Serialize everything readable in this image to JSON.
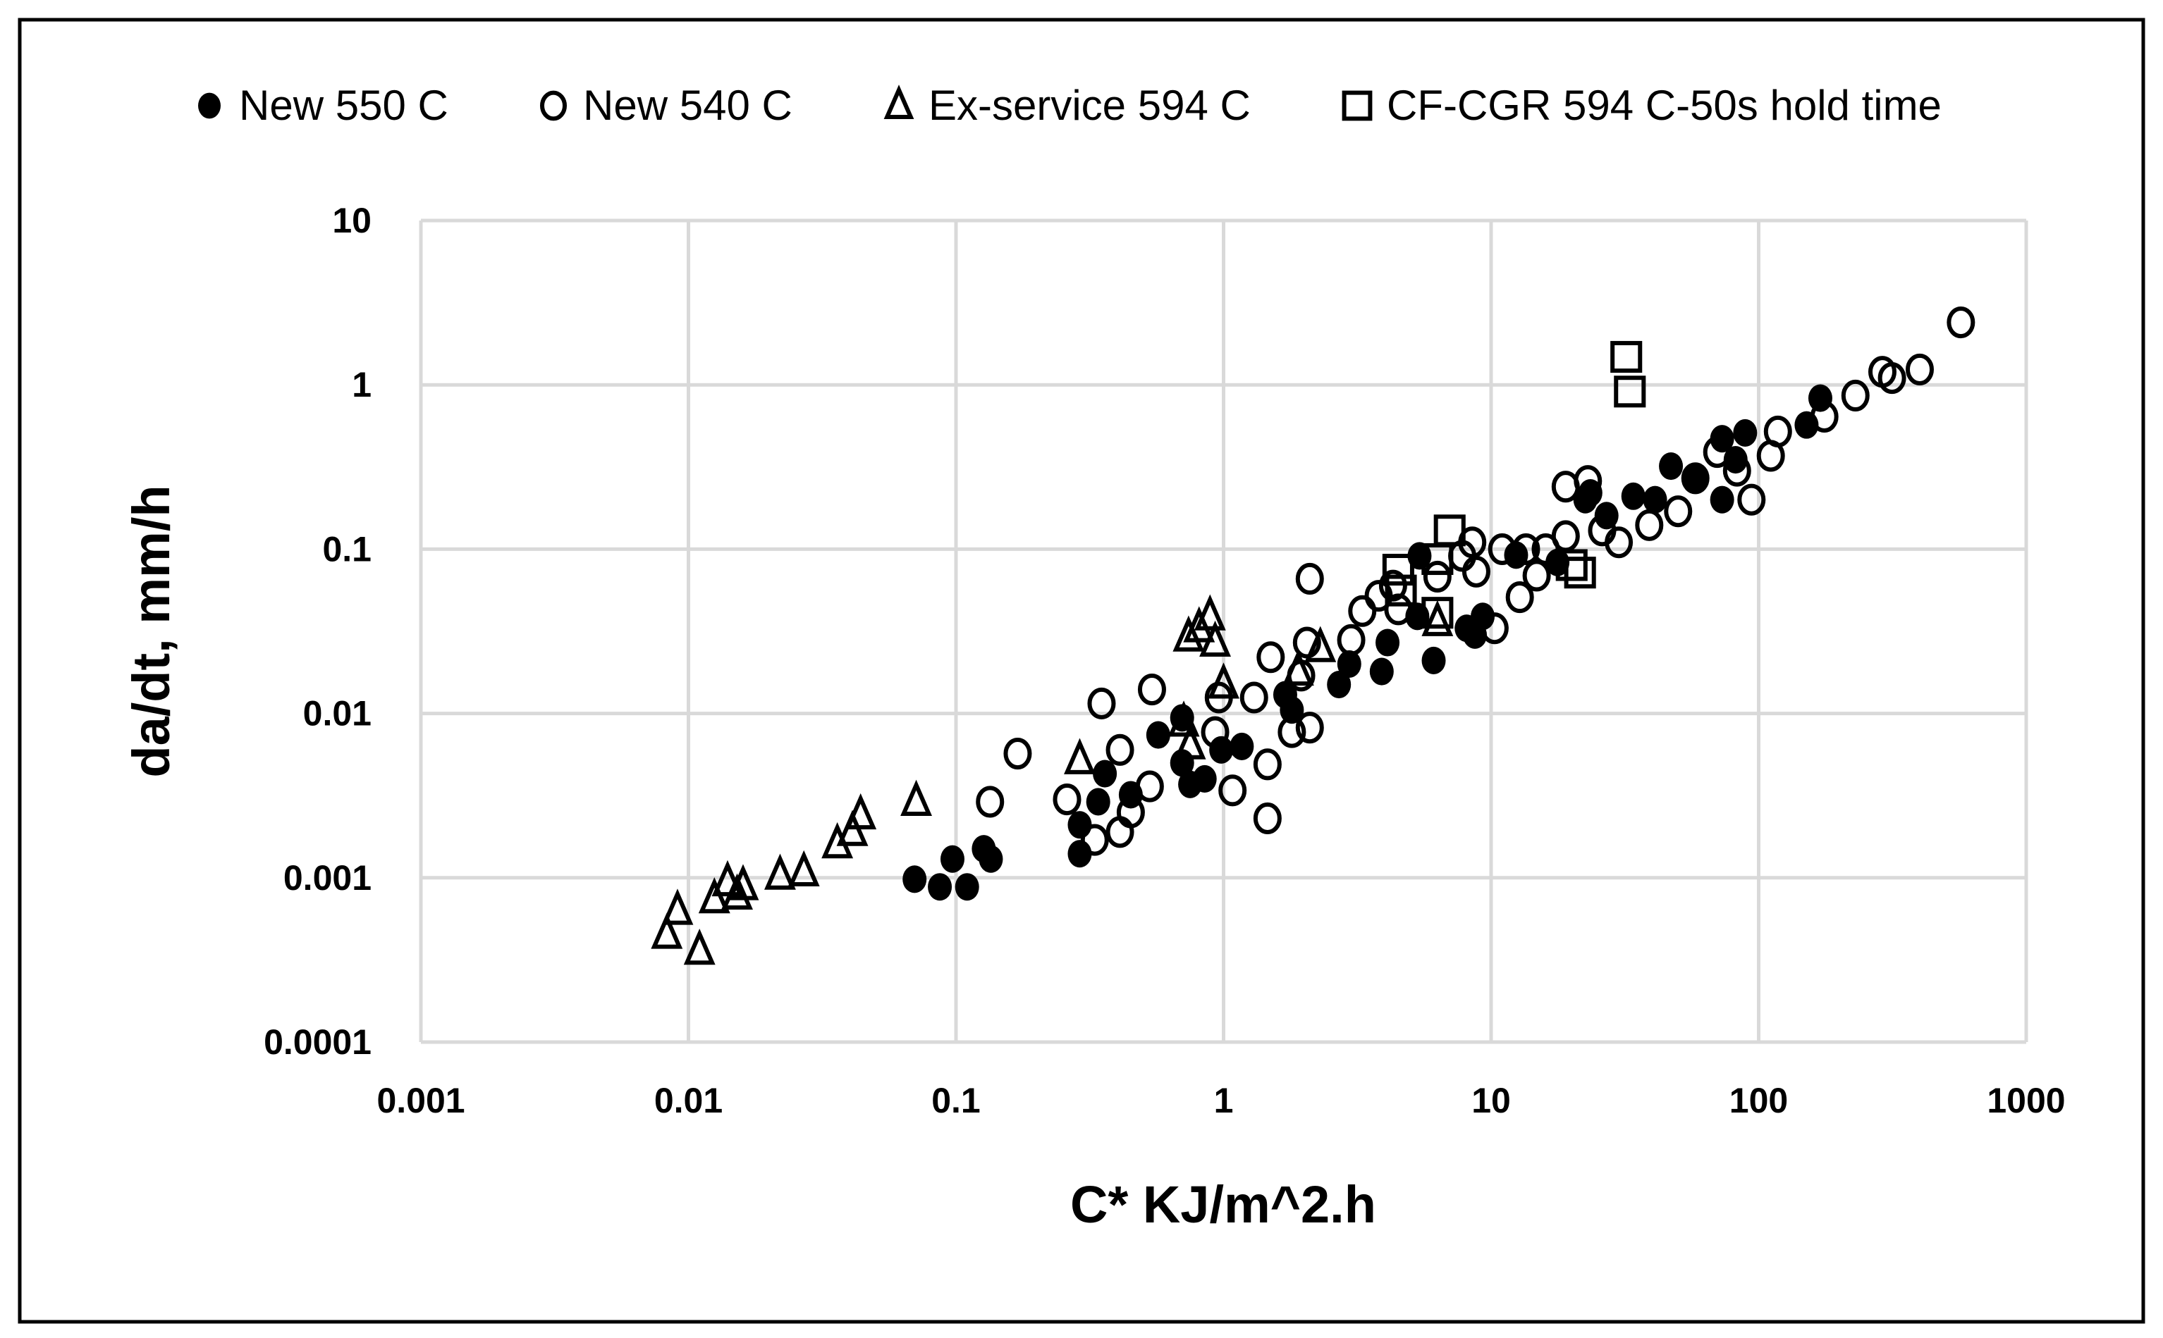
{
  "chart_data": {
    "type": "scatter",
    "title": "",
    "xlabel": "C* KJ/m^2.h",
    "ylabel": "da/dt, mm/h",
    "xscale": "log",
    "yscale": "log",
    "xlim": [
      0.001,
      1000
    ],
    "ylim": [
      0.0001,
      10
    ],
    "x_ticks": [
      "0.001",
      "0.01",
      "0.1",
      "1",
      "10",
      "100",
      "1000"
    ],
    "y_ticks": [
      "0.0001",
      "0.001",
      "0.01",
      "0.1",
      "1",
      "10"
    ],
    "grid": true,
    "legend_position": "top",
    "series": [
      {
        "name": "New 550 C",
        "marker": "filled-circle",
        "color": "#000000",
        "points": [
          [
            0.07,
            0.00098
          ],
          [
            0.087,
            0.00088
          ],
          [
            0.097,
            0.0013
          ],
          [
            0.11,
            0.00088
          ],
          [
            0.127,
            0.0015
          ],
          [
            0.135,
            0.0013
          ],
          [
            0.29,
            0.0014
          ],
          [
            0.29,
            0.0021
          ],
          [
            0.34,
            0.0029
          ],
          [
            0.36,
            0.0043
          ],
          [
            0.45,
            0.0032
          ],
          [
            0.57,
            0.0074
          ],
          [
            0.7,
            0.0094
          ],
          [
            0.7,
            0.005
          ],
          [
            0.75,
            0.0037
          ],
          [
            0.85,
            0.004
          ],
          [
            0.98,
            0.006
          ],
          [
            1.17,
            0.0063
          ],
          [
            1.7,
            0.013
          ],
          [
            1.8,
            0.0105
          ],
          [
            2.7,
            0.015
          ],
          [
            2.95,
            0.02
          ],
          [
            3.9,
            0.018
          ],
          [
            4.1,
            0.027
          ],
          [
            5.3,
            0.039
          ],
          [
            5.4,
            0.091
          ],
          [
            6.1,
            0.021
          ],
          [
            8.1,
            0.033
          ],
          [
            8.7,
            0.03
          ],
          [
            9.3,
            0.039
          ],
          [
            12.4,
            0.092
          ],
          [
            17.7,
            0.083
          ],
          [
            22.5,
            0.2
          ],
          [
            23.5,
            0.22
          ],
          [
            27,
            0.16
          ],
          [
            34,
            0.21
          ],
          [
            41,
            0.2
          ],
          [
            47,
            0.32
          ],
          [
            58,
            0.27
          ],
          [
            73,
            0.47
          ],
          [
            73,
            0.2
          ],
          [
            82,
            0.35
          ],
          [
            89,
            0.51
          ],
          [
            151,
            0.57
          ],
          [
            170,
            0.83
          ]
        ]
      },
      {
        "name": "New 540 C",
        "marker": "open-circle",
        "color": "#000000",
        "points": [
          [
            0.134,
            0.0029
          ],
          [
            0.17,
            0.0057
          ],
          [
            0.26,
            0.003
          ],
          [
            0.35,
            0.0115
          ],
          [
            0.33,
            0.0017
          ],
          [
            0.41,
            0.006
          ],
          [
            0.41,
            0.0019
          ],
          [
            0.45,
            0.0025
          ],
          [
            0.54,
            0.014
          ],
          [
            0.53,
            0.0036
          ],
          [
            1.08,
            0.0034
          ],
          [
            0.93,
            0.0077
          ],
          [
            0.96,
            0.0125
          ],
          [
            1.46,
            0.0023
          ],
          [
            1.46,
            0.0049
          ],
          [
            1.5,
            0.022
          ],
          [
            1.3,
            0.0125
          ],
          [
            2.1,
            0.066
          ],
          [
            2.05,
            0.027
          ],
          [
            1.95,
            0.017
          ],
          [
            2.1,
            0.0082
          ],
          [
            1.8,
            0.0077
          ],
          [
            3.0,
            0.028
          ],
          [
            3.3,
            0.042
          ],
          [
            3.8,
            0.052
          ],
          [
            4.3,
            0.06
          ],
          [
            4.5,
            0.043
          ],
          [
            6.3,
            0.068
          ],
          [
            7.8,
            0.091
          ],
          [
            8.5,
            0.11
          ],
          [
            8.8,
            0.073
          ],
          [
            10.3,
            0.033
          ],
          [
            11,
            0.1
          ],
          [
            12.8,
            0.051
          ],
          [
            13.5,
            0.1
          ],
          [
            14.8,
            0.069
          ],
          [
            16,
            0.1
          ],
          [
            19,
            0.24
          ],
          [
            19,
            0.12
          ],
          [
            23,
            0.26
          ],
          [
            26,
            0.13
          ],
          [
            30,
            0.11
          ],
          [
            39,
            0.14
          ],
          [
            50,
            0.17
          ],
          [
            58,
            0.27
          ],
          [
            70,
            0.39
          ],
          [
            83,
            0.3
          ],
          [
            94,
            0.2
          ],
          [
            111,
            0.37
          ],
          [
            118,
            0.52
          ],
          [
            176,
            0.64
          ],
          [
            230,
            0.86
          ],
          [
            290,
            1.2
          ],
          [
            315,
            1.1
          ],
          [
            400,
            1.24
          ],
          [
            570,
            2.4
          ]
        ]
      },
      {
        "name": "Ex-service 594 C",
        "marker": "open-triangle",
        "color": "#000000",
        "points": [
          [
            0.0083,
            0.00045
          ],
          [
            0.0091,
            0.00063
          ],
          [
            0.011,
            0.00036
          ],
          [
            0.0125,
            0.00074
          ],
          [
            0.014,
            0.00094
          ],
          [
            0.0152,
            0.00078
          ],
          [
            0.016,
            0.00089
          ],
          [
            0.022,
            0.00103
          ],
          [
            0.027,
            0.00108
          ],
          [
            0.036,
            0.0016
          ],
          [
            0.041,
            0.0019
          ],
          [
            0.044,
            0.0024
          ],
          [
            0.071,
            0.0029
          ],
          [
            0.29,
            0.0052
          ],
          [
            0.71,
            0.0088
          ],
          [
            0.75,
            0.0064
          ],
          [
            0.74,
            0.029
          ],
          [
            0.81,
            0.033
          ],
          [
            0.89,
            0.039
          ],
          [
            0.93,
            0.027
          ],
          [
            1.0,
            0.015
          ],
          [
            1.9,
            0.018
          ],
          [
            2.3,
            0.025
          ],
          [
            6.3,
            0.036
          ]
        ]
      },
      {
        "name": "CF-CGR 594 C-50s hold time",
        "marker": "open-square",
        "color": "#000000",
        "points": [
          [
            32,
            1.48
          ],
          [
            33,
            0.91
          ],
          [
            7.0,
            0.13
          ],
          [
            4.5,
            0.075
          ],
          [
            6.3,
            0.087
          ],
          [
            4.6,
            0.056
          ],
          [
            6.3,
            0.041
          ],
          [
            20,
            0.08
          ],
          [
            21.5,
            0.072
          ]
        ]
      }
    ]
  }
}
